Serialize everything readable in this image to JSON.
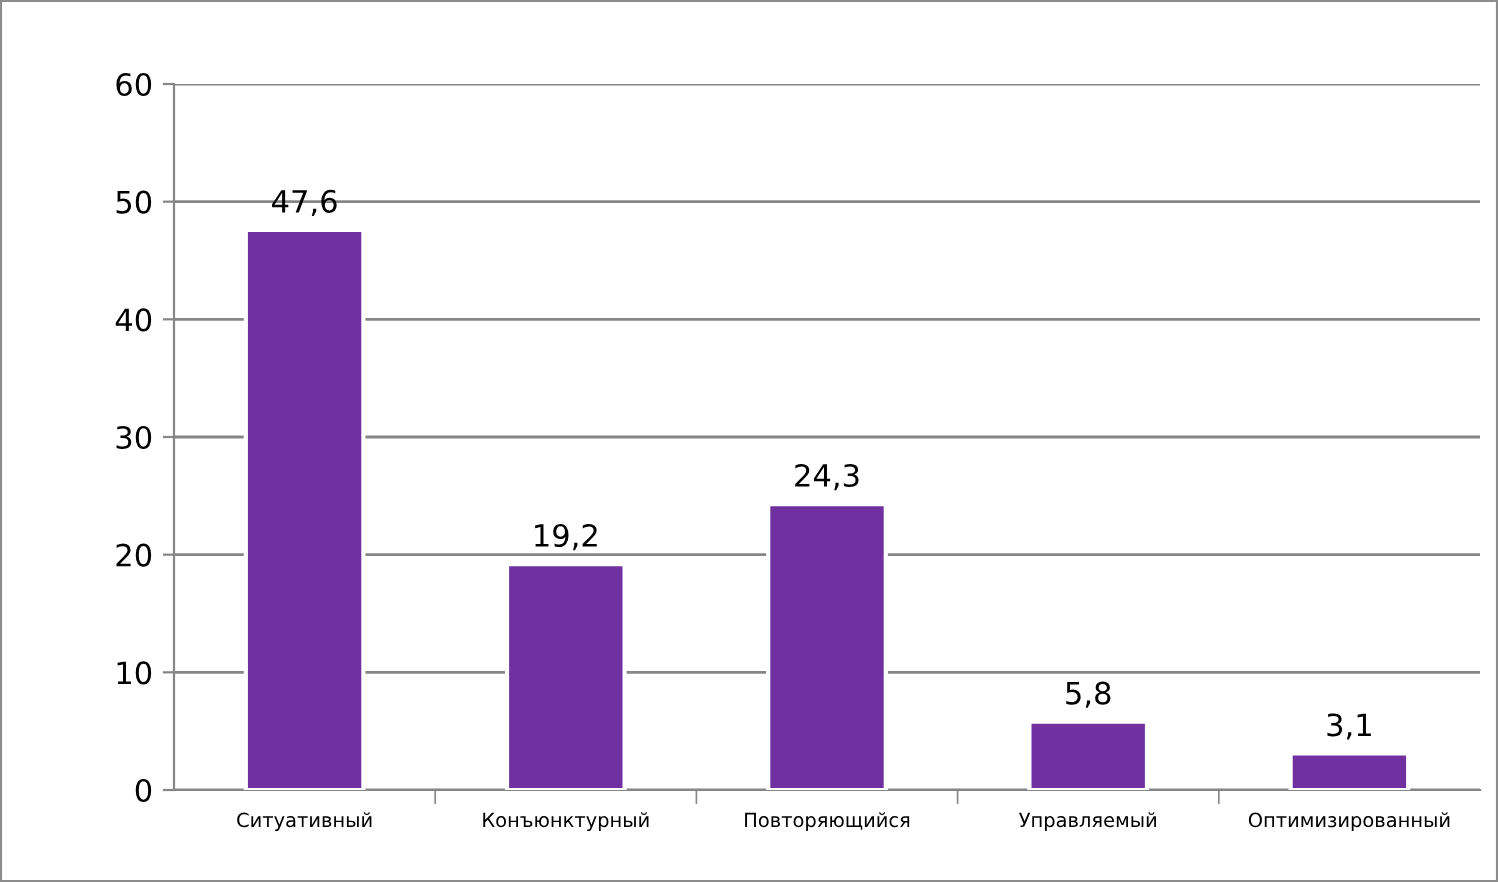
{
  "chart_data": {
    "type": "bar",
    "categories": [
      "Ситуативный",
      "Конъюнктурный",
      "Повторяющийся",
      "Управляемый",
      "Оптимизированный"
    ],
    "values": [
      47.6,
      19.2,
      24.3,
      5.8,
      3.1
    ],
    "value_labels": [
      "47,6",
      "19,2",
      "24,3",
      "5,8",
      "3,1"
    ],
    "color": "#7030a0",
    "ylim": [
      0,
      60
    ],
    "yticks": [
      0,
      10,
      20,
      30,
      40,
      50,
      60
    ],
    "grid": "y",
    "legend": false
  }
}
